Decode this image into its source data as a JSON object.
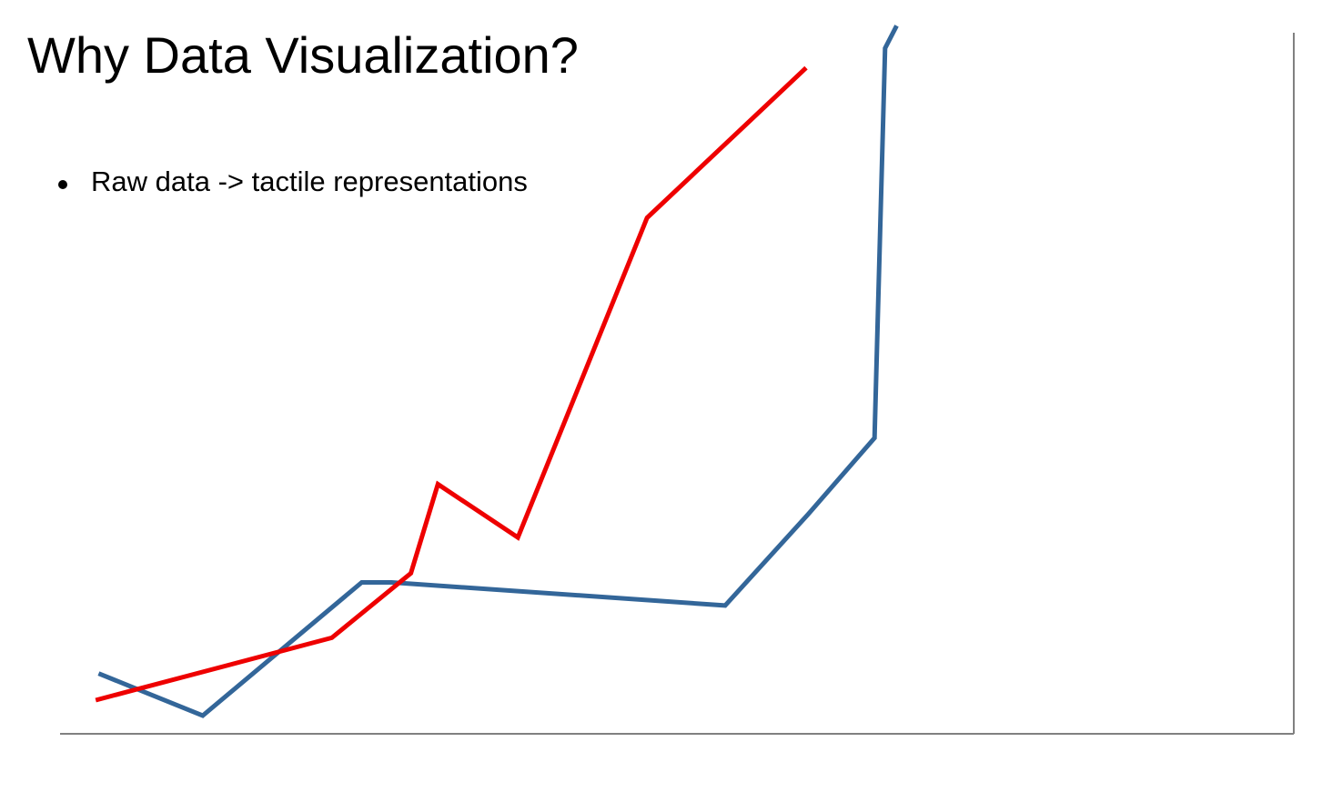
{
  "slide": {
    "title": "Why Data Visualization?",
    "bullets": [
      "Raw data -> tactile representations"
    ]
  },
  "chart_data": {
    "type": "line",
    "title": "",
    "xlabel": "",
    "ylabel": "",
    "x": [
      0,
      1,
      2,
      3,
      4,
      5,
      6,
      7,
      8,
      9,
      10,
      11,
      12
    ],
    "xlim": [
      -0.4,
      12.4
    ],
    "ylim": [
      0,
      100
    ],
    "grid": false,
    "legend": "none",
    "series": [
      {
        "color": "#336699",
        "points": [
          [
            0,
            8.6
          ],
          [
            1.08,
            2.6
          ],
          [
            2.73,
            21.6
          ],
          [
            3.04,
            21.6
          ],
          [
            6.5,
            18.3
          ],
          [
            7.36,
            31.3
          ],
          [
            8.05,
            42.2
          ],
          [
            8.16,
            97.8
          ],
          [
            8.28,
            101.0
          ]
        ]
      },
      {
        "color": "#ee0000",
        "points": [
          [
            -0.03,
            4.8
          ],
          [
            2.42,
            13.7
          ],
          [
            3.24,
            22.9
          ],
          [
            3.52,
            35.6
          ],
          [
            4.35,
            28.0
          ],
          [
            5.69,
            73.6
          ],
          [
            7.34,
            95.0
          ]
        ]
      }
    ]
  }
}
